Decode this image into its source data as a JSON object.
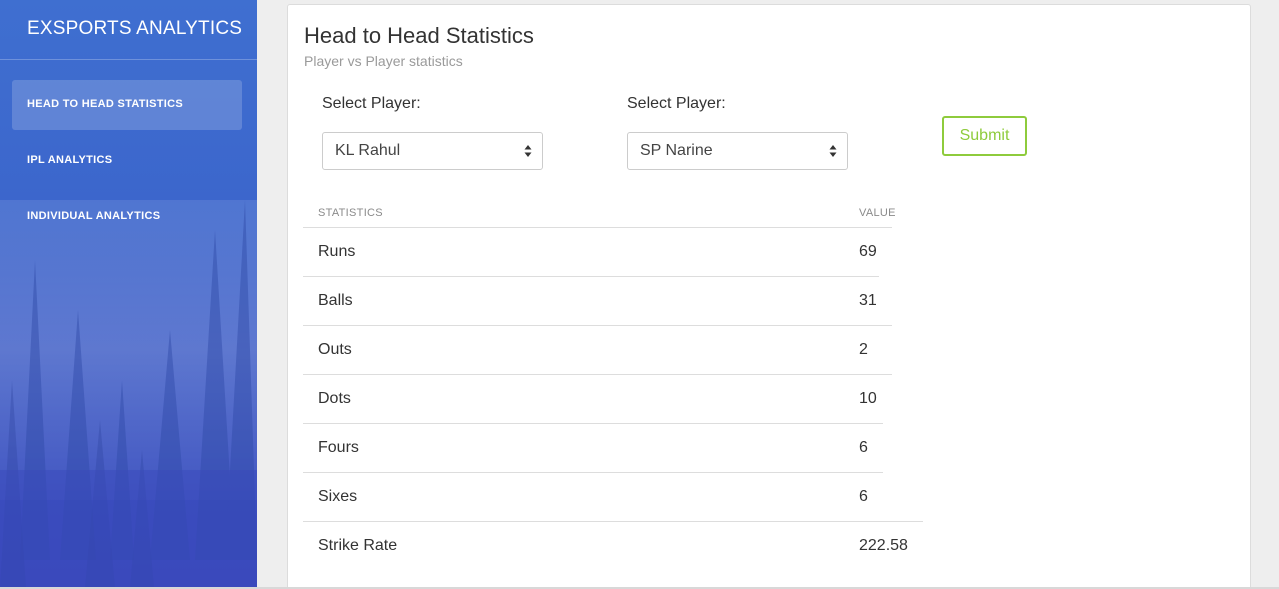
{
  "sidebar": {
    "brand": "EXSPORTS ANALYTICS",
    "items": [
      {
        "label": "HEAD TO HEAD STATISTICS",
        "active": true
      },
      {
        "label": "IPL ANALYTICS",
        "active": false
      },
      {
        "label": "INDIVIDUAL ANALYTICS",
        "active": false
      }
    ]
  },
  "card": {
    "title": "Head to Head Statistics",
    "subtitle": "Player vs Player statistics"
  },
  "form": {
    "player1_label": "Select Player:",
    "player1_value": "KL Rahul",
    "player2_label": "Select Player:",
    "player2_value": "SP Narine",
    "submit_label": "Submit"
  },
  "table": {
    "headers": [
      "STATISTICS",
      "VALUE"
    ],
    "rows": [
      {
        "stat": "Runs",
        "value": "69"
      },
      {
        "stat": "Balls",
        "value": "31"
      },
      {
        "stat": "Outs",
        "value": "2"
      },
      {
        "stat": "Dots",
        "value": "10"
      },
      {
        "stat": "Fours",
        "value": "6"
      },
      {
        "stat": "Sixes",
        "value": "6"
      },
      {
        "stat": "Strike Rate",
        "value": "222.58"
      }
    ]
  },
  "colors": {
    "sidebar": "#3c62c9",
    "accent": "#8ecb3c"
  }
}
